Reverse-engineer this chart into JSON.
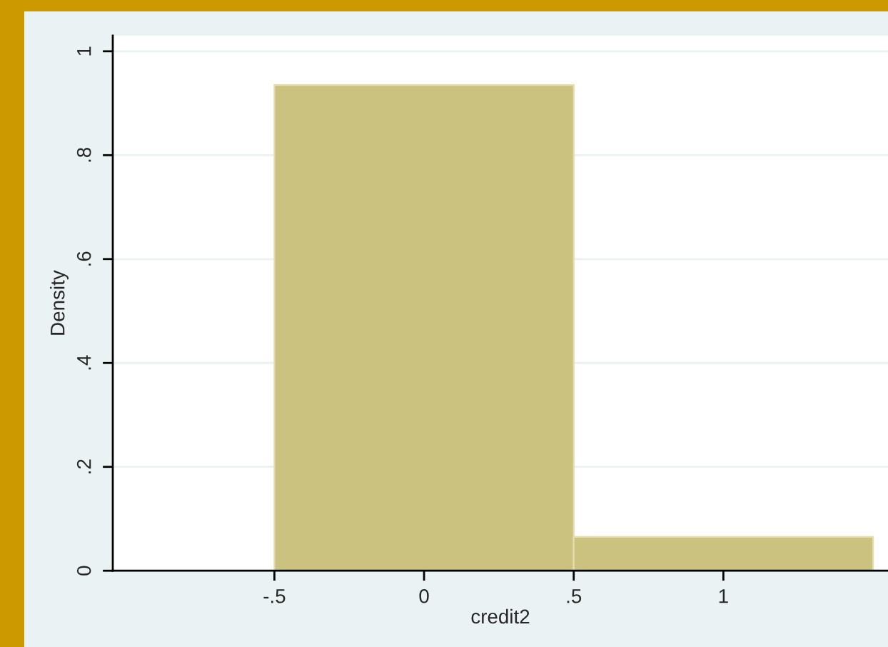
{
  "chart_data": {
    "type": "histogram",
    "xlabel": "credit2",
    "ylabel": "Density",
    "bins": [
      -0.5,
      0.5,
      1.5
    ],
    "values": [
      0.935,
      0.065
    ],
    "color": "#cbc27f",
    "xlim": [
      -1.04,
      1.55
    ],
    "xticks": [
      {
        "value": -0.5,
        "label": "-.5"
      },
      0,
      {
        "value": 0.5,
        "label": ".5"
      },
      1
    ],
    "ylim": [
      0,
      1.03
    ],
    "yticks": [
      0,
      {
        "value": 0.2,
        "label": ".2"
      },
      {
        "value": 0.4,
        "label": ".4"
      },
      {
        "value": 0.6,
        "label": ".6"
      },
      {
        "value": 0.8,
        "label": ".8"
      },
      1
    ],
    "grid": "y",
    "legend": false
  }
}
